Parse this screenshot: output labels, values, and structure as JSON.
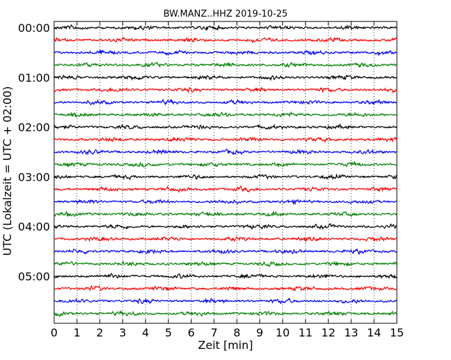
{
  "chart_data": {
    "type": "line",
    "title": "BW.MANZ..HHZ 2019-10-25",
    "xlabel": "Zeit  [min]",
    "ylabel": "UTC (Lokalzeit = UTC + 02:00)",
    "xlim": [
      0,
      15
    ],
    "x_ticks": [
      "0",
      "1",
      "2",
      "3",
      "4",
      "5",
      "6",
      "7",
      "8",
      "9",
      "10",
      "11",
      "12",
      "13",
      "14",
      "15"
    ],
    "y_ticks": [
      "00:00",
      "01:00",
      "02:00",
      "03:00",
      "04:00",
      "05:00"
    ],
    "grid": "vertical dotted",
    "series_colors": [
      "#000000",
      "#ff0000",
      "#0000ff",
      "#007f00"
    ],
    "rows": 24,
    "row_minutes": 15
  }
}
